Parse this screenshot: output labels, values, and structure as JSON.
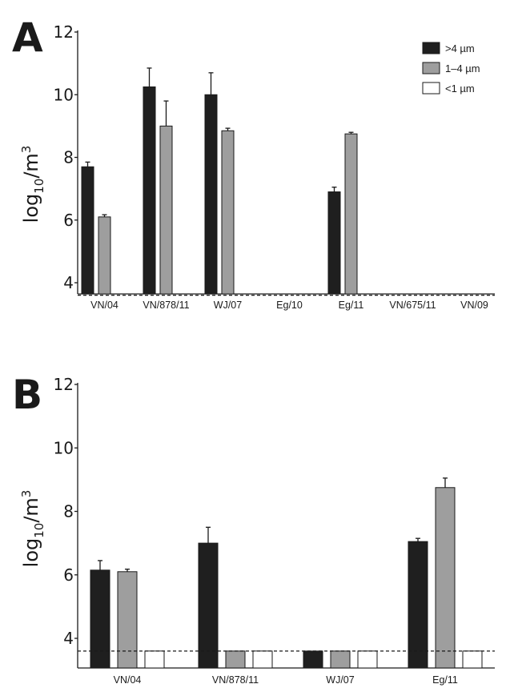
{
  "colors": {
    "gt4": "#1f1f1f",
    "mid": "#9e9e9e",
    "lt1": "#ffffff",
    "outline": "#1a1a1a"
  },
  "legend": {
    "position": "top-right",
    "items": [
      "&gt;4 µm",
      "1–4 µm",
      "&lt;1 µm"
    ]
  },
  "chart_data": [
    {
      "type": "bar",
      "panel": "A",
      "ylabel": {
        "base": "log",
        "sub": "10",
        "mid": "/m",
        "sup": "3"
      },
      "ylim": [
        3,
        12
      ],
      "yticks": [
        4,
        6,
        8,
        10,
        12
      ],
      "detection_limit": 3.6,
      "grid": false,
      "categories": [
        "VN/04",
        "VN/878/11",
        "WJ/07",
        "Eg/10",
        "Eg/11",
        "VN/675/11",
        "VN/09"
      ],
      "series": [
        {
          "name": "&gt;4 µm",
          "values": [
            7.7,
            10.25,
            10.0,
            3.6,
            6.9,
            3.6,
            3.6
          ],
          "errors": [
            0.15,
            0.6,
            0.7,
            0,
            0.15,
            0,
            0
          ]
        },
        {
          "name": "1–4 µm",
          "values": [
            6.1,
            9.0,
            8.85,
            3.6,
            8.75,
            3.6,
            3.6
          ],
          "errors": [
            0.07,
            0.8,
            0.08,
            0,
            0.05,
            0,
            0
          ]
        },
        {
          "name": "&lt;1 µm",
          "values": [
            3.6,
            3.6,
            3.6,
            3.6,
            3.6,
            3.6,
            3.6
          ],
          "errors": [
            0,
            0,
            0,
            0,
            0,
            0,
            0
          ]
        }
      ]
    },
    {
      "type": "bar",
      "panel": "B",
      "ylabel": {
        "base": "log",
        "sub": "10",
        "mid": "/m",
        "sup": "3"
      },
      "ylim": [
        3,
        12
      ],
      "yticks": [
        4,
        6,
        8,
        10,
        12
      ],
      "detection_limit": 3.6,
      "grid": false,
      "categories": [
        "VN/04",
        "VN/878/11",
        "WJ/07",
        "Eg/11"
      ],
      "series": [
        {
          "name": "&gt;4 µm",
          "values": [
            6.15,
            7.0,
            3.6,
            7.05
          ],
          "errors": [
            0.3,
            0.5,
            0,
            0.1
          ]
        },
        {
          "name": "1–4 µm",
          "values": [
            6.1,
            3.6,
            3.6,
            8.75
          ],
          "errors": [
            0.08,
            0,
            0,
            0.3
          ]
        },
        {
          "name": "&lt;1 µm",
          "values": [
            3.6,
            3.6,
            3.6,
            3.6
          ],
          "errors": [
            0,
            0,
            0,
            0
          ]
        }
      ]
    }
  ]
}
